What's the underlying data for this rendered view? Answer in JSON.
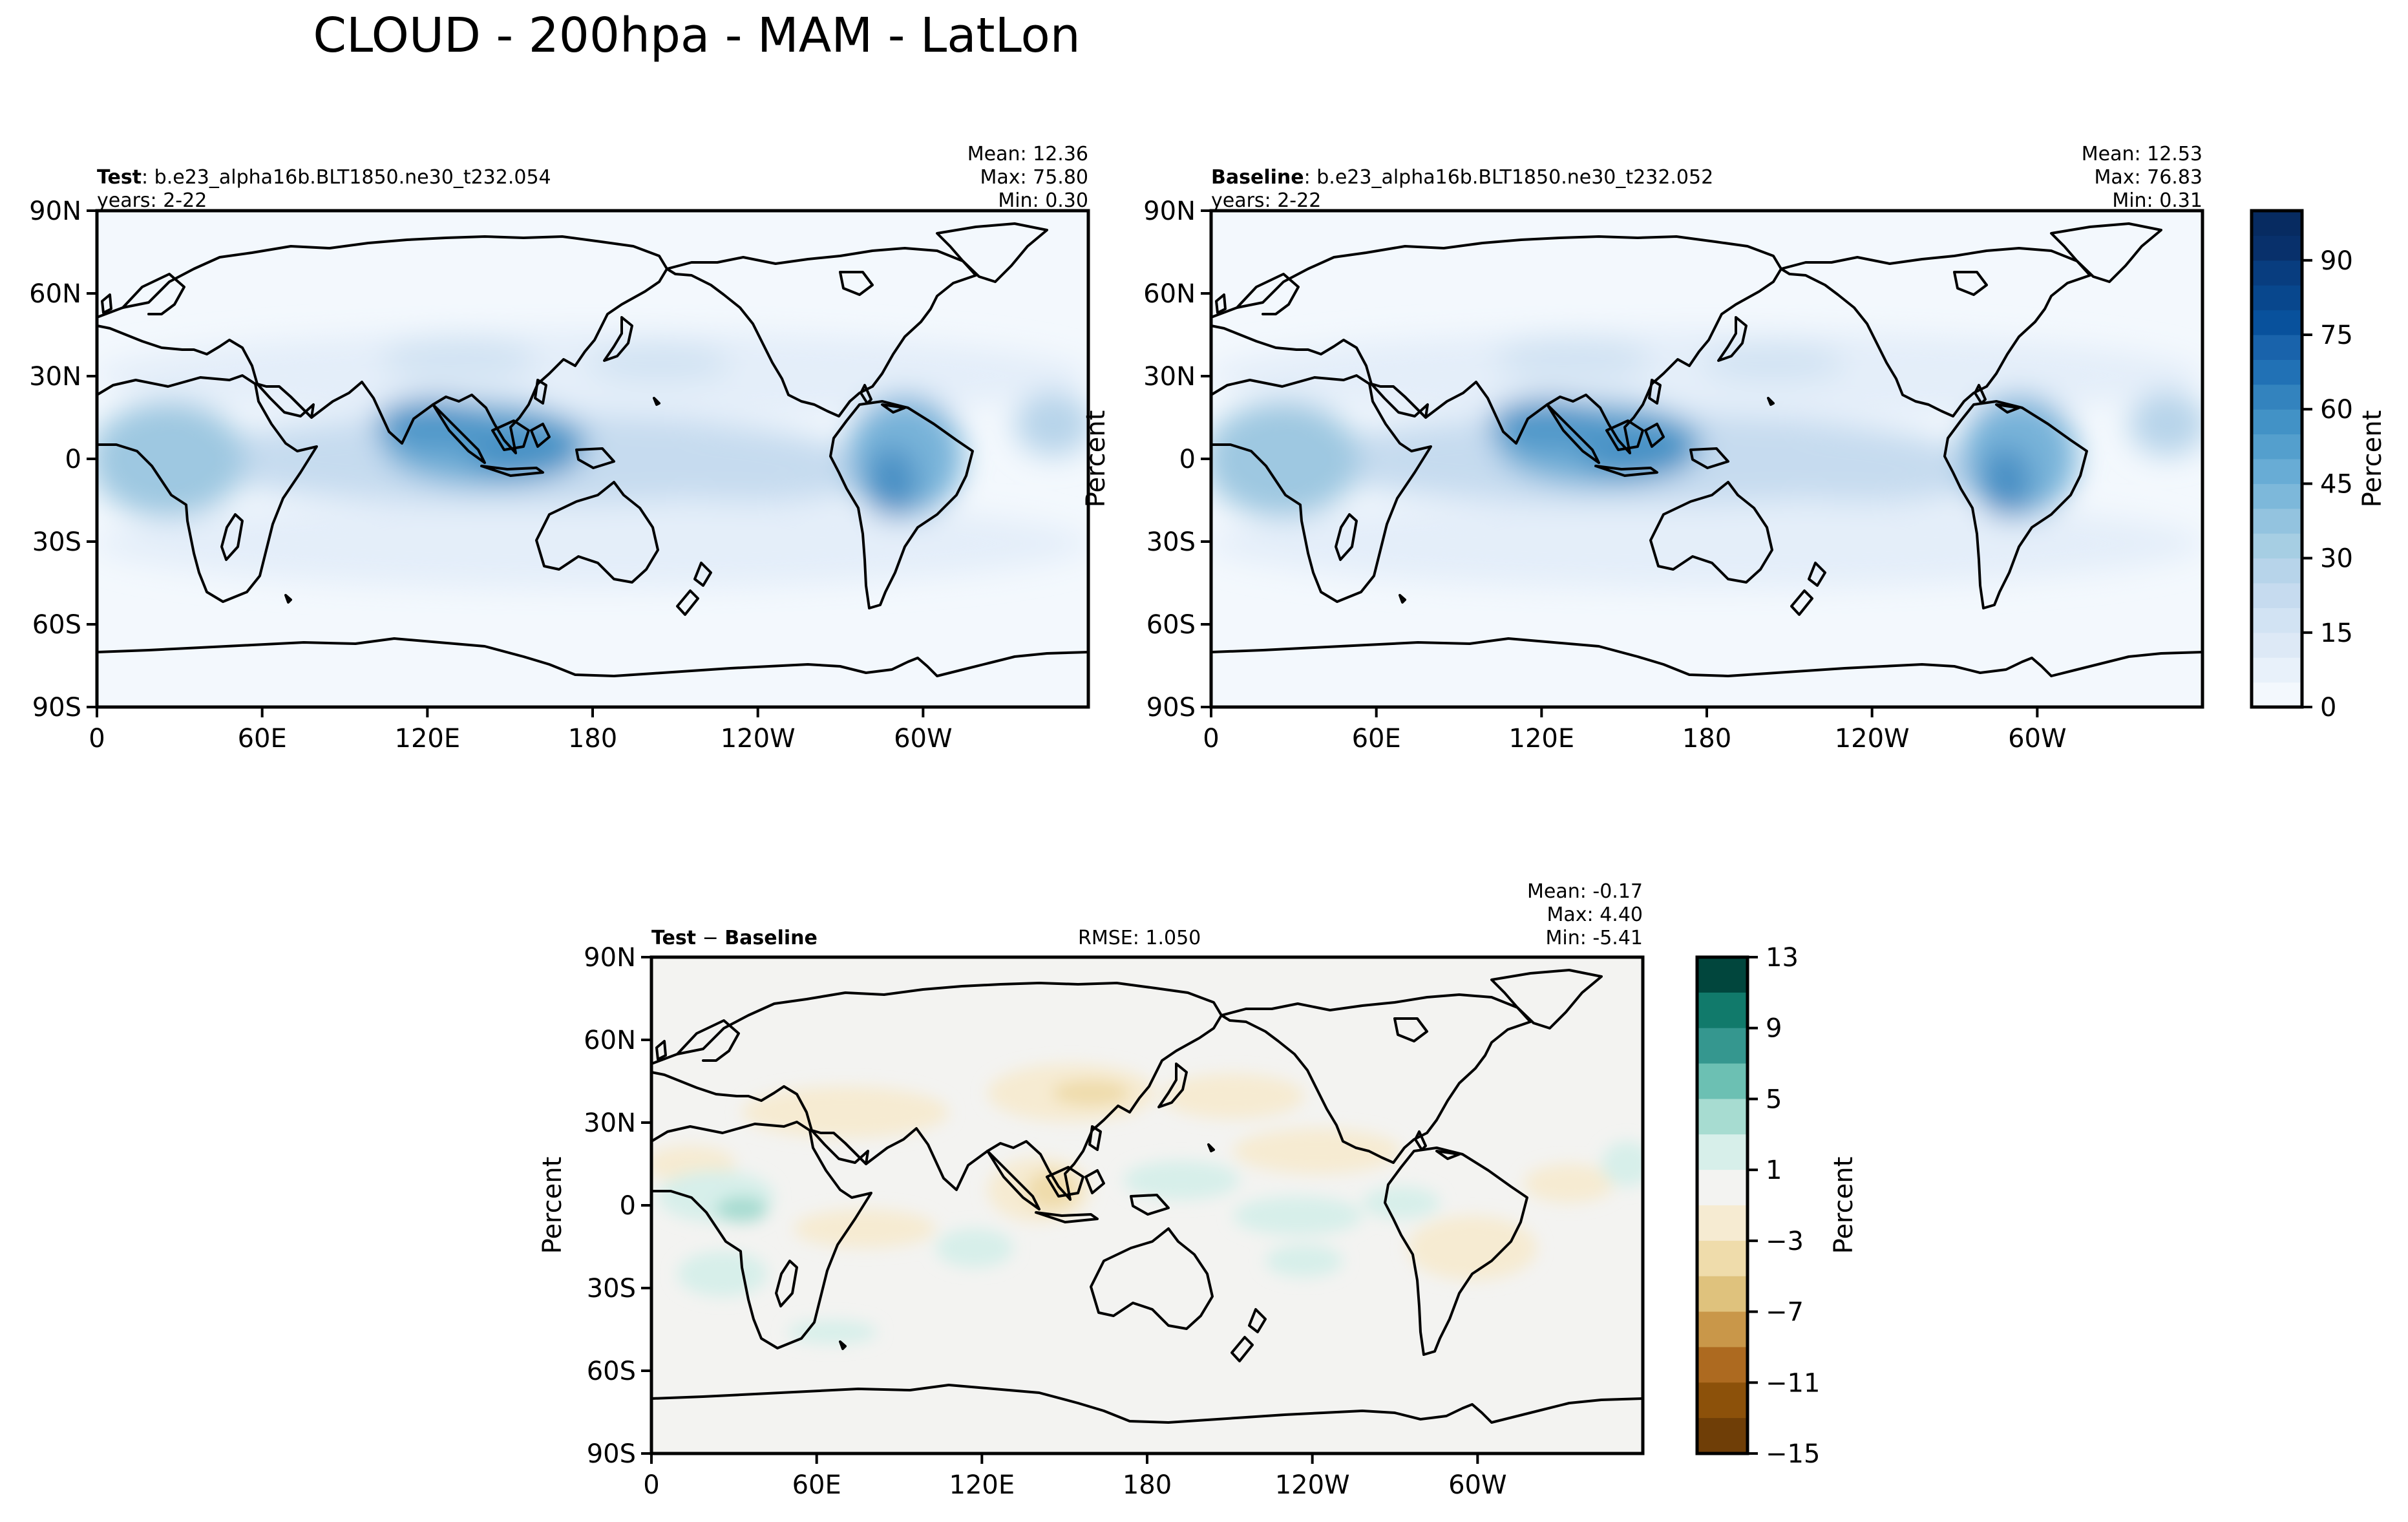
{
  "figure": {
    "title": "CLOUD - 200hpa - MAM - LatLon"
  },
  "panels": {
    "test": {
      "label_bold": "Test",
      "label_rest": ": b.e23_alpha16b.BLT1850.ne30_t232.054",
      "years": "years: 2-22",
      "mean": "Mean: 12.36",
      "max": "Max: 75.80",
      "min": "Min:  0.30"
    },
    "baseline": {
      "label_bold": "Baseline",
      "label_rest": ": b.e23_alpha16b.BLT1850.ne30_t232.052",
      "years": "years: 2-22",
      "mean": "Mean: 12.53",
      "max": "Max: 76.83",
      "min": "Min:  0.31",
      "ylabel": "Percent"
    },
    "diff": {
      "label_bold_1": "Test",
      "label_sep": " − ",
      "label_bold_2": "Baseline",
      "rmse": "RMSE: 1.050",
      "mean": "Mean: -0.17",
      "max": "Max:  4.40",
      "min": "Min: -5.41",
      "ylabel": "Percent"
    }
  },
  "axes": {
    "lat_ticks": [
      "90N",
      "60N",
      "30N",
      "0",
      "30S",
      "60S",
      "90S"
    ],
    "lon_ticks": [
      "0",
      "60E",
      "120E",
      "180",
      "120W",
      "60W"
    ]
  },
  "colorbars": {
    "main": {
      "label": "Percent",
      "ticks": [
        "0",
        "15",
        "30",
        "45",
        "60",
        "75",
        "90"
      ],
      "range": [
        0,
        100
      ],
      "levels": 20,
      "colors": [
        "#f3f8fd",
        "#e8f1fa",
        "#dde9f6",
        "#d2e3f3",
        "#c6dbef",
        "#b7d4ea",
        "#a6cee3",
        "#93c3df",
        "#7db8da",
        "#68acd5",
        "#549fcd",
        "#4292c6",
        "#3383be",
        "#2171b5",
        "#1963ab",
        "#08519c",
        "#08478d",
        "#083d7f",
        "#08306b",
        "#072b61"
      ]
    },
    "diff": {
      "label": "Percent",
      "ticks": [
        "13",
        "9",
        "5",
        "1",
        "−3",
        "−7",
        "−11",
        "−15"
      ],
      "levels": [
        13,
        11,
        9,
        7,
        5,
        3,
        1,
        -1,
        -3,
        -5,
        -7,
        -9,
        -11,
        -13,
        -15
      ],
      "colors": [
        "#01463d",
        "#117a6b",
        "#35978f",
        "#6cc0b3",
        "#a7dcd1",
        "#d7efea",
        "#f3f3f1",
        "#f6ebd2",
        "#efdcab",
        "#dfc27d",
        "#c99749",
        "#ad6a20",
        "#8c510a",
        "#6f3e07"
      ]
    }
  },
  "chart_data": {
    "type": "heatmap",
    "title": "CLOUD - 200hpa - MAM - LatLon",
    "variable": "CLOUD",
    "level": "200hpa",
    "season": "MAM",
    "units": "Percent",
    "lat_range": [
      -90,
      90
    ],
    "lon_range": [
      0,
      360
    ],
    "maps": [
      {
        "name": "Test",
        "case": "b.e23_alpha16b.BLT1850.ne30_t232.054",
        "years": "2-22",
        "mean": 12.36,
        "max": 75.8,
        "min": 0.3
      },
      {
        "name": "Baseline",
        "case": "b.e23_alpha16b.BLT1850.ne30_t232.052",
        "years": "2-22",
        "mean": 12.53,
        "max": 76.83,
        "min": 0.31
      },
      {
        "name": "Test − Baseline",
        "rmse": 1.05,
        "mean": -0.17,
        "max": 4.4,
        "min": -5.41
      }
    ],
    "colorbar_main_range": [
      0,
      100
    ],
    "colorbar_diff_range": [
      -15,
      13
    ]
  }
}
